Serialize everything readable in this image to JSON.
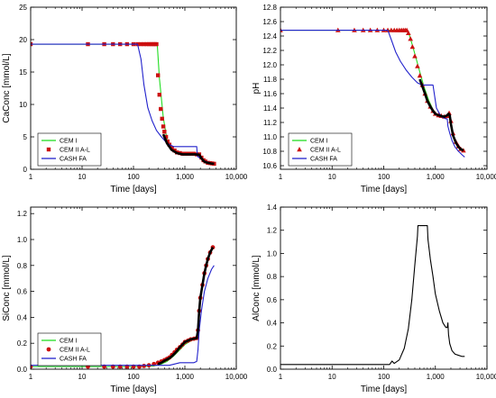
{
  "chart_data": [
    {
      "type": "line",
      "ylabel": "CaConc [mmol/L]",
      "xlabel": "Time [days]",
      "xscale": "log",
      "xlim": [
        1,
        10000
      ],
      "ylim": [
        0,
        25
      ],
      "xticks": [
        1,
        10,
        100,
        1000,
        10000
      ],
      "xtick_labels": [
        "1",
        "10",
        "100",
        "1,000",
        "10,000"
      ],
      "yticks": [
        0,
        5,
        10,
        15,
        20,
        25
      ],
      "ytick_labels": [
        "0",
        "5",
        "10",
        "15",
        "20",
        "25"
      ],
      "legend_position": "bottom-left",
      "series": [
        {
          "name": "CEM I",
          "style": "line",
          "color": "#22dd22",
          "x": [
            1,
            200,
            290,
            320,
            380,
            450,
            550,
            700,
            900,
            1100,
            1300,
            1600,
            1900,
            2300,
            2700,
            3200,
            3700
          ],
          "y": [
            19.3,
            19.3,
            19.3,
            14,
            8,
            4.5,
            3.0,
            2.4,
            2.3,
            2.3,
            2.3,
            2.3,
            2.1,
            1.3,
            1.0,
            0.9,
            0.85
          ]
        },
        {
          "name": "CEM II A-L",
          "style": "markers",
          "marker": "square",
          "color": "#cc1111",
          "x": [
            1,
            13,
            27,
            40,
            55,
            75,
            100,
            120,
            140,
            160,
            180,
            200,
            220,
            240,
            260,
            280,
            300,
            320,
            340,
            360,
            380,
            400,
            430,
            460,
            500,
            560,
            630,
            700,
            800,
            900,
            1000,
            1100,
            1200,
            1350,
            1500,
            1700,
            1900,
            2100,
            2300,
            2500,
            2800,
            3100,
            3400,
            3700
          ],
          "y": [
            19.3,
            19.3,
            19.3,
            19.3,
            19.3,
            19.3,
            19.3,
            19.3,
            19.3,
            19.3,
            19.3,
            19.3,
            19.3,
            19.3,
            19.3,
            19.3,
            14.5,
            11.5,
            9.3,
            7.8,
            6.6,
            5.8,
            5.0,
            4.3,
            3.8,
            3.3,
            2.9,
            2.6,
            2.5,
            2.4,
            2.4,
            2.4,
            2.4,
            2.4,
            2.4,
            2.3,
            2.3,
            1.8,
            1.4,
            1.2,
            1.0,
            0.95,
            0.9,
            0.85
          ]
        },
        {
          "name": "CASH FA",
          "style": "line",
          "color": "#2222cc",
          "x": [
            1,
            120,
            140,
            160,
            190,
            230,
            280,
            350,
            450,
            600,
            750,
            900,
            1100,
            1300,
            1500,
            1700,
            1750,
            1900,
            2100,
            2400,
            2800,
            3300,
            3700
          ],
          "y": [
            19.3,
            19.3,
            17,
            13,
            9.5,
            7.5,
            6.0,
            5.0,
            4.0,
            3.5,
            3.5,
            3.5,
            3.5,
            3.5,
            3.5,
            3.5,
            2.0,
            1.8,
            1.6,
            1.3,
            1.1,
            0.95,
            0.85
          ]
        },
        {
          "name": "",
          "style": "thickline",
          "color": "#000000",
          "x": [
            380,
            450,
            550,
            700,
            900,
            1100,
            1300,
            1600,
            1900,
            2100,
            2300,
            2500,
            2800,
            3200,
            3700
          ],
          "y": [
            5.4,
            4.0,
            3.0,
            2.5,
            2.3,
            2.3,
            2.3,
            2.3,
            2.25,
            1.7,
            1.3,
            1.1,
            1.0,
            0.9,
            0.85
          ]
        }
      ]
    },
    {
      "type": "line",
      "ylabel": "pH",
      "xlabel": "Time [days]",
      "xscale": "log",
      "xlim": [
        1,
        10000
      ],
      "ylim": [
        10.55,
        12.8
      ],
      "xticks": [
        1,
        10,
        100,
        1000,
        10000
      ],
      "xtick_labels": [
        "1",
        "10",
        "100",
        "1,000",
        "10,000"
      ],
      "yticks": [
        10.6,
        10.8,
        11.0,
        11.2,
        11.4,
        11.6,
        11.8,
        12.0,
        12.2,
        12.4,
        12.6,
        12.8
      ],
      "ytick_labels": [
        "10.6",
        "10.8",
        "11.0",
        "11.2",
        "11.4",
        "11.6",
        "11.8",
        "12.0",
        "12.2",
        "12.4",
        "12.6",
        "12.8"
      ],
      "legend_position": "bottom-left",
      "series": [
        {
          "name": "CEM I",
          "style": "line",
          "color": "#22dd22",
          "x": [
            1,
            250,
            300,
            350,
            420,
            500,
            600,
            750,
            900,
            1100,
            1300,
            1500,
            1700,
            1800,
            1900,
            2100,
            2400,
            2800,
            3300,
            3700
          ],
          "y": [
            12.48,
            12.48,
            12.46,
            12.3,
            12.1,
            11.9,
            11.7,
            11.5,
            11.38,
            11.3,
            11.28,
            11.28,
            11.28,
            11.3,
            11.32,
            11.1,
            10.95,
            10.87,
            10.83,
            10.81
          ]
        },
        {
          "name": "CEM II A-L",
          "style": "markers",
          "marker": "triangle",
          "color": "#cc1111",
          "x": [
            1,
            13,
            27,
            40,
            55,
            75,
            100,
            120,
            140,
            160,
            180,
            200,
            220,
            240,
            260,
            280,
            300,
            330,
            360,
            400,
            450,
            500,
            560,
            630,
            700,
            800,
            900,
            1000,
            1150,
            1300,
            1500,
            1700,
            1850,
            2000,
            2200,
            2500,
            2800,
            3100,
            3500
          ],
          "y": [
            12.48,
            12.48,
            12.48,
            12.48,
            12.48,
            12.48,
            12.48,
            12.48,
            12.48,
            12.48,
            12.48,
            12.48,
            12.48,
            12.48,
            12.48,
            12.48,
            12.44,
            12.36,
            12.25,
            12.12,
            11.98,
            11.85,
            11.72,
            11.6,
            11.5,
            11.42,
            11.36,
            11.32,
            11.3,
            11.29,
            11.28,
            11.29,
            11.33,
            11.22,
            11.05,
            10.93,
            10.87,
            10.83,
            10.81
          ]
        },
        {
          "name": "CASH FA",
          "style": "line",
          "color": "#2222cc",
          "x": [
            1,
            120,
            140,
            170,
            210,
            270,
            350,
            450,
            550,
            650,
            760,
            900,
            1050,
            1300,
            1600,
            1700,
            1750,
            1900,
            2100,
            2400,
            2800,
            3300,
            3700
          ],
          "y": [
            12.48,
            12.48,
            12.35,
            12.18,
            12.05,
            11.93,
            11.83,
            11.75,
            11.72,
            11.72,
            11.72,
            11.72,
            11.4,
            11.28,
            11.25,
            11.25,
            11.15,
            11.05,
            10.95,
            10.86,
            10.8,
            10.75,
            10.72
          ]
        },
        {
          "name": "",
          "style": "thickline",
          "color": "#000000",
          "x": [
            500,
            560,
            630,
            700,
            800,
            900,
            1000,
            1150,
            1300,
            1500,
            1700,
            1800,
            1900,
            2000,
            2200,
            2500,
            2800,
            3100,
            3500
          ],
          "y": [
            11.8,
            11.7,
            11.6,
            11.5,
            11.42,
            11.36,
            11.32,
            11.3,
            11.29,
            11.28,
            11.3,
            11.32,
            11.3,
            11.18,
            11.02,
            10.92,
            10.86,
            10.83,
            10.81
          ]
        }
      ]
    },
    {
      "type": "line",
      "ylabel": "SiConc [mmol/L]",
      "xlabel": "Time [days]",
      "xscale": "log",
      "xlim": [
        1,
        10000
      ],
      "ylim": [
        0,
        1.25
      ],
      "xticks": [
        1,
        10,
        100,
        1000,
        10000
      ],
      "xtick_labels": [
        "1",
        "10",
        "100",
        "1,000",
        "10,000"
      ],
      "yticks": [
        0,
        0.2,
        0.4,
        0.6,
        0.8,
        1.0,
        1.2
      ],
      "ytick_labels": [
        "0.0",
        "0.2",
        "0.4",
        "0.6",
        "0.8",
        "1.0",
        "1.2"
      ],
      "legend_position": "bottom-left",
      "series": [
        {
          "name": "CEM I",
          "style": "line",
          "color": "#22dd22",
          "x": [
            1,
            150,
            250,
            350,
            450,
            600,
            800,
            1000,
            1200,
            1500,
            1700,
            1800,
            1900,
            2100,
            2400,
            2800,
            3300,
            3700
          ],
          "y": [
            0.02,
            0.02,
            0.025,
            0.04,
            0.06,
            0.1,
            0.15,
            0.19,
            0.21,
            0.23,
            0.24,
            0.3,
            0.45,
            0.6,
            0.75,
            0.85,
            0.92,
            0.95
          ]
        },
        {
          "name": "CEM II A-L",
          "style": "markers",
          "marker": "circle",
          "color": "#cc1111",
          "x": [
            1,
            13,
            27,
            40,
            55,
            75,
            100,
            130,
            160,
            200,
            250,
            300,
            350,
            400,
            450,
            500,
            560,
            630,
            700,
            800,
            900,
            1000,
            1150,
            1300,
            1500,
            1700,
            1800,
            1900,
            2000,
            2200,
            2400,
            2600,
            2800,
            3100,
            3500
          ],
          "y": [
            0.02,
            0.02,
            0.02,
            0.02,
            0.02,
            0.02,
            0.02,
            0.02,
            0.025,
            0.03,
            0.04,
            0.05,
            0.06,
            0.07,
            0.08,
            0.09,
            0.11,
            0.13,
            0.15,
            0.17,
            0.19,
            0.21,
            0.22,
            0.23,
            0.235,
            0.24,
            0.3,
            0.45,
            0.55,
            0.65,
            0.74,
            0.8,
            0.85,
            0.9,
            0.94
          ]
        },
        {
          "name": "CASH FA",
          "style": "line",
          "color": "#2222cc",
          "x": [
            1,
            100,
            300,
            500,
            800,
            1000,
            1200,
            1500,
            1700,
            1800,
            1900,
            2100,
            2400,
            2800,
            3300,
            3700
          ],
          "y": [
            0.03,
            0.03,
            0.03,
            0.03,
            0.05,
            0.05,
            0.05,
            0.05,
            0.06,
            0.15,
            0.3,
            0.45,
            0.6,
            0.7,
            0.77,
            0.8
          ]
        },
        {
          "name": "",
          "style": "thickline",
          "color": "#000000",
          "x": [
            300,
            350,
            400,
            450,
            500,
            560,
            630,
            700,
            800,
            900,
            1000,
            1150,
            1300,
            1500,
            1700,
            1800,
            1900,
            2000,
            2200,
            2400,
            2600,
            2800,
            3100,
            3500
          ],
          "y": [
            0.04,
            0.05,
            0.065,
            0.075,
            0.085,
            0.1,
            0.12,
            0.14,
            0.17,
            0.19,
            0.21,
            0.22,
            0.23,
            0.235,
            0.24,
            0.3,
            0.45,
            0.55,
            0.65,
            0.74,
            0.8,
            0.85,
            0.9,
            0.94
          ]
        }
      ]
    },
    {
      "type": "line",
      "ylabel": "AlConc [mmol/L]",
      "xlabel": "Time [days]",
      "xscale": "log",
      "xlim": [
        1,
        10000
      ],
      "ylim": [
        0,
        1.4
      ],
      "xticks": [
        1,
        10,
        100,
        1000,
        10000
      ],
      "xtick_labels": [
        "1",
        "10",
        "100",
        "1,000",
        "10,000"
      ],
      "yticks": [
        0,
        0.2,
        0.4,
        0.6,
        0.8,
        1.0,
        1.2,
        1.4
      ],
      "ytick_labels": [
        "0.0",
        "0.2",
        "0.4",
        "0.6",
        "0.8",
        "1.0",
        "1.2",
        "1.4"
      ],
      "series": [
        {
          "name": "",
          "style": "line",
          "color": "#000000",
          "x": [
            1,
            100,
            130,
            145,
            160,
            200,
            250,
            300,
            350,
            400,
            450,
            460,
            700,
            720,
            800,
            900,
            1000,
            1200,
            1400,
            1600,
            1700,
            1750,
            1800,
            1900,
            2100,
            2400,
            2800,
            3300,
            3700
          ],
          "y": [
            0.04,
            0.04,
            0.04,
            0.07,
            0.05,
            0.08,
            0.18,
            0.35,
            0.6,
            0.9,
            1.15,
            1.24,
            1.24,
            1.12,
            0.95,
            0.8,
            0.65,
            0.5,
            0.4,
            0.36,
            0.36,
            0.4,
            0.3,
            0.22,
            0.16,
            0.13,
            0.12,
            0.11,
            0.11
          ]
        }
      ]
    }
  ]
}
